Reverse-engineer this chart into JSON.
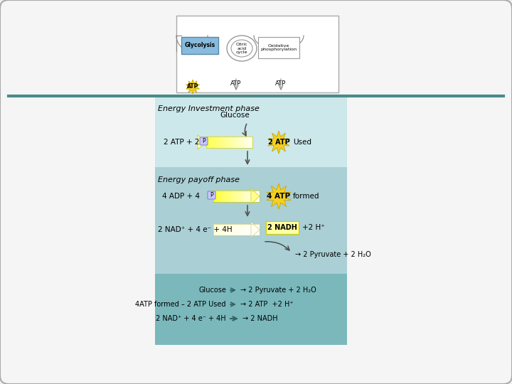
{
  "bg_color": "#f0f0f0",
  "outer_bg": "#f2f2f2",
  "panel_light": "#cce8ea",
  "panel_medium": "#aacfd4",
  "panel_dark": "#7ab8bc",
  "teal_line": "#4a8a8a",
  "title": "Energy Investment phase",
  "payoff_title": "Energy payoff phase",
  "glucose_text": "Glucose",
  "invest_eq": "2 ATP + 2 ",
  "atp_used_label": "2 ATP",
  "atp_used_suffix": "Used",
  "payoff_eq1": "4 ADP + 4 ",
  "atp_formed_label": "4 ATP",
  "atp_formed_suffix": "formed",
  "payoff_eq2": "2 NAD⁺ + 4 e⁻ + 4H",
  "nadh_label": "2 NADH",
  "nadh_suffix": "+2 H⁺",
  "pyruvate_line": "→ 2 Pyruvate + 2 H₂O",
  "summary_line1_left": "Glucose",
  "summary_line1_right": "→ 2 Pyruvate + 2 H₂O",
  "summary_line2_left": "4ATP formed – 2 ATP Used",
  "summary_line2_right": "→ 2 ATP  +2 H⁺",
  "summary_line3_left": "2 NAD⁺ + 4 e⁻ + 4H",
  "summary_line3_right": "→ 2 NADH",
  "glycolysis_label": "Glycolysis",
  "citric_label": "Citric\nacid\ncycle",
  "ox_label": "Oxidative\nphosphorylation",
  "atp1_label": "ATP",
  "atp2_label": "ATP",
  "atp3_label": "ATP",
  "starburst_color": "#f5d020",
  "starburst_edge": "#c8a800",
  "arrow_yellow": "#f0e060",
  "arrow_yellow2": "#f8f0a0",
  "p_box_color": "#c8c8ff",
  "p_box_edge": "#8080bb"
}
